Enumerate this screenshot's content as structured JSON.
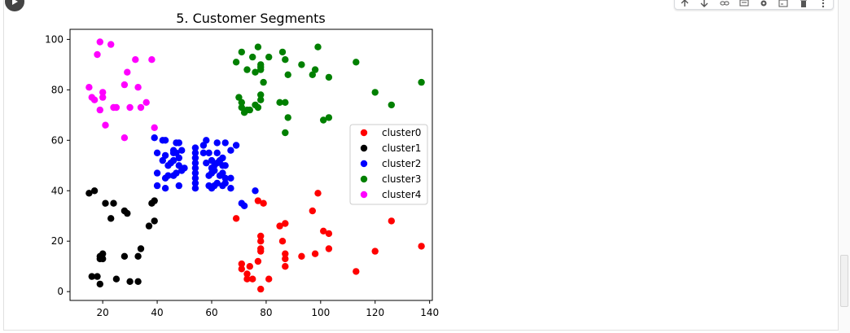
{
  "chart_data": {
    "type": "scatter",
    "title": "5. Customer Segments",
    "xlabel": "",
    "ylabel": "",
    "xlim": [
      8,
      141
    ],
    "ylim": [
      -3.5,
      104
    ],
    "xticks": [
      20,
      40,
      60,
      80,
      100,
      120,
      140
    ],
    "yticks": [
      0,
      20,
      40,
      60,
      80,
      100
    ],
    "grid": false,
    "legend_position": "center-right",
    "series": [
      {
        "name": "cluster0",
        "color": "#ff0000",
        "points": [
          [
            69,
            29
          ],
          [
            71,
            11
          ],
          [
            71,
            9
          ],
          [
            73,
            5
          ],
          [
            73,
            7
          ],
          [
            74,
            10
          ],
          [
            75,
            5
          ],
          [
            77,
            12
          ],
          [
            77,
            36
          ],
          [
            78,
            1
          ],
          [
            78,
            16
          ],
          [
            78,
            17
          ],
          [
            78,
            20
          ],
          [
            78,
            22
          ],
          [
            79,
            35
          ],
          [
            81,
            5
          ],
          [
            85,
            26
          ],
          [
            86,
            20
          ],
          [
            87,
            10
          ],
          [
            87,
            13
          ],
          [
            87,
            15
          ],
          [
            87,
            27
          ],
          [
            93,
            14
          ],
          [
            97,
            32
          ],
          [
            98,
            15
          ],
          [
            99,
            39
          ],
          [
            101,
            24
          ],
          [
            103,
            17
          ],
          [
            103,
            23
          ],
          [
            113,
            8
          ],
          [
            120,
            16
          ],
          [
            126,
            28
          ],
          [
            137,
            18
          ]
        ]
      },
      {
        "name": "cluster1",
        "color": "#000000",
        "points": [
          [
            15,
            39
          ],
          [
            16,
            6
          ],
          [
            17,
            40
          ],
          [
            18,
            6
          ],
          [
            19,
            3
          ],
          [
            19,
            14
          ],
          [
            19,
            13
          ],
          [
            20,
            15
          ],
          [
            20,
            13
          ],
          [
            21,
            35
          ],
          [
            23,
            29
          ],
          [
            24,
            35
          ],
          [
            25,
            5
          ],
          [
            28,
            32
          ],
          [
            28,
            14
          ],
          [
            29,
            31
          ],
          [
            30,
            4
          ],
          [
            33,
            4
          ],
          [
            33,
            14
          ],
          [
            34,
            17
          ],
          [
            37,
            26
          ],
          [
            38,
            35
          ],
          [
            39,
            36
          ],
          [
            39,
            28
          ]
        ]
      },
      {
        "name": "cluster2",
        "color": "#0000ff",
        "points": [
          [
            39,
            61
          ],
          [
            40,
            55
          ],
          [
            40,
            47
          ],
          [
            40,
            42
          ],
          [
            42,
            52
          ],
          [
            42,
            60
          ],
          [
            43,
            60
          ],
          [
            43,
            54
          ],
          [
            43,
            45
          ],
          [
            43,
            41
          ],
          [
            44,
            50
          ],
          [
            44,
            46
          ],
          [
            45,
            51
          ],
          [
            46,
            56
          ],
          [
            46,
            55
          ],
          [
            46,
            52
          ],
          [
            46,
            46
          ],
          [
            47,
            59
          ],
          [
            47,
            55
          ],
          [
            47,
            47
          ],
          [
            48,
            59
          ],
          [
            48,
            53
          ],
          [
            48,
            50
          ],
          [
            48,
            42
          ],
          [
            49,
            56
          ],
          [
            49,
            48
          ],
          [
            50,
            49
          ],
          [
            54,
            57
          ],
          [
            54,
            55
          ],
          [
            54,
            53
          ],
          [
            54,
            51
          ],
          [
            54,
            49
          ],
          [
            54,
            47
          ],
          [
            54,
            45
          ],
          [
            54,
            43
          ],
          [
            54,
            41
          ],
          [
            57,
            58
          ],
          [
            57,
            55
          ],
          [
            58,
            60
          ],
          [
            58,
            51
          ],
          [
            59,
            55
          ],
          [
            59,
            46
          ],
          [
            59,
            42
          ],
          [
            60,
            52
          ],
          [
            60,
            49
          ],
          [
            60,
            47
          ],
          [
            60,
            41
          ],
          [
            61,
            50
          ],
          [
            61,
            48
          ],
          [
            61,
            42
          ],
          [
            62,
            55
          ],
          [
            62,
            59
          ],
          [
            62,
            51
          ],
          [
            62,
            43
          ],
          [
            63,
            52
          ],
          [
            63,
            46
          ],
          [
            64,
            53
          ],
          [
            64,
            50
          ],
          [
            64,
            47
          ],
          [
            64,
            42
          ],
          [
            65,
            59
          ],
          [
            65,
            50
          ],
          [
            65,
            45
          ],
          [
            65,
            43
          ],
          [
            67,
            56
          ],
          [
            67,
            45
          ],
          [
            67,
            41
          ],
          [
            69,
            58
          ],
          [
            71,
            35
          ],
          [
            72,
            34
          ],
          [
            76,
            40
          ]
        ]
      },
      {
        "name": "cluster3",
        "color": "#008000",
        "points": [
          [
            69,
            91
          ],
          [
            70,
            77
          ],
          [
            71,
            95
          ],
          [
            71,
            75
          ],
          [
            71,
            73
          ],
          [
            72,
            71
          ],
          [
            73,
            72
          ],
          [
            73,
            88
          ],
          [
            74,
            72
          ],
          [
            75,
            93
          ],
          [
            76,
            87
          ],
          [
            76,
            74
          ],
          [
            77,
            97
          ],
          [
            77,
            73
          ],
          [
            78,
            90
          ],
          [
            78,
            88
          ],
          [
            78,
            89
          ],
          [
            78,
            78
          ],
          [
            78,
            76
          ],
          [
            79,
            83
          ],
          [
            81,
            93
          ],
          [
            85,
            75
          ],
          [
            86,
            95
          ],
          [
            87,
            92
          ],
          [
            87,
            75
          ],
          [
            88,
            86
          ],
          [
            88,
            69
          ],
          [
            87,
            63
          ],
          [
            93,
            90
          ],
          [
            97,
            86
          ],
          [
            98,
            88
          ],
          [
            99,
            97
          ],
          [
            101,
            68
          ],
          [
            103,
            69
          ],
          [
            103,
            85
          ],
          [
            113,
            91
          ],
          [
            120,
            79
          ],
          [
            126,
            74
          ],
          [
            137,
            83
          ]
        ]
      },
      {
        "name": "cluster4",
        "color": "#ff00ff",
        "points": [
          [
            15,
            81
          ],
          [
            16,
            77
          ],
          [
            17,
            76
          ],
          [
            18,
            94
          ],
          [
            19,
            99
          ],
          [
            19,
            72
          ],
          [
            20,
            79
          ],
          [
            20,
            77
          ],
          [
            21,
            66
          ],
          [
            23,
            98
          ],
          [
            24,
            73
          ],
          [
            25,
            73
          ],
          [
            28,
            82
          ],
          [
            28,
            61
          ],
          [
            29,
            87
          ],
          [
            30,
            73
          ],
          [
            32,
            92
          ],
          [
            33,
            81
          ],
          [
            34,
            73
          ],
          [
            36,
            75
          ],
          [
            38,
            92
          ],
          [
            39,
            65
          ]
        ]
      }
    ]
  }
}
